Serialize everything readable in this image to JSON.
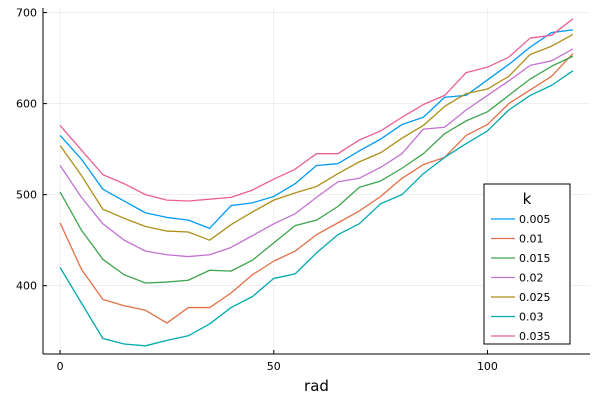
{
  "chart_data": {
    "type": "line",
    "xlabel": "rad",
    "ylabel": "",
    "xlim": [
      -4,
      124
    ],
    "ylim": [
      325,
      705
    ],
    "xticks": [
      0,
      50,
      100
    ],
    "yticks": [
      400,
      500,
      600,
      700
    ],
    "grid": true,
    "legend": {
      "title": "k",
      "position": "bottom-right"
    },
    "x": [
      0,
      5,
      10,
      15,
      20,
      25,
      30,
      35,
      40,
      45,
      50,
      55,
      60,
      65,
      70,
      75,
      80,
      85,
      90,
      95,
      100,
      105,
      110,
      115,
      120
    ],
    "series": [
      {
        "name": "0.005",
        "color": "#009AFA",
        "values": [
          565,
          539,
          506,
          493,
          480,
          475,
          472,
          463,
          488,
          491,
          498,
          512,
          532,
          534,
          548,
          561,
          577,
          585,
          607,
          609,
          626,
          643,
          662,
          678,
          681
        ]
      },
      {
        "name": "0.01",
        "color": "#E36F47",
        "values": [
          469,
          418,
          385,
          378,
          373,
          359,
          376,
          376,
          392,
          412,
          427,
          438,
          456,
          469,
          482,
          498,
          518,
          533,
          541,
          565,
          577,
          600,
          615,
          630,
          655
        ]
      },
      {
        "name": "0.015",
        "color": "#3EA44E",
        "values": [
          503,
          461,
          429,
          412,
          403,
          404,
          406,
          417,
          416,
          428,
          447,
          466,
          472,
          487,
          508,
          515,
          529,
          545,
          567,
          581,
          591,
          609,
          627,
          641,
          652
        ]
      },
      {
        "name": "0.02",
        "color": "#C371D2",
        "values": [
          532,
          497,
          468,
          450,
          438,
          434,
          432,
          434,
          442,
          455,
          468,
          479,
          497,
          514,
          518,
          530,
          545,
          572,
          574,
          593,
          609,
          625,
          642,
          647,
          660
        ]
      },
      {
        "name": "0.025",
        "color": "#AC8E18",
        "values": [
          554,
          521,
          484,
          474,
          465,
          460,
          459,
          450,
          467,
          481,
          494,
          502,
          509,
          523,
          536,
          546,
          562,
          576,
          597,
          611,
          616,
          630,
          654,
          663,
          676
        ]
      },
      {
        "name": "0.03",
        "color": "#00A9AD",
        "values": [
          420,
          381,
          342,
          336,
          334,
          340,
          345,
          358,
          376,
          388,
          408,
          413,
          436,
          456,
          468,
          490,
          500,
          523,
          541,
          556,
          570,
          593,
          609,
          620,
          636
        ]
      },
      {
        "name": "0.035",
        "color": "#ED5E93",
        "values": [
          576,
          549,
          522,
          512,
          500,
          494,
          493,
          495,
          497,
          505,
          517,
          528,
          545,
          545,
          560,
          570,
          585,
          599,
          609,
          634,
          640,
          651,
          672,
          675,
          693
        ]
      }
    ]
  }
}
